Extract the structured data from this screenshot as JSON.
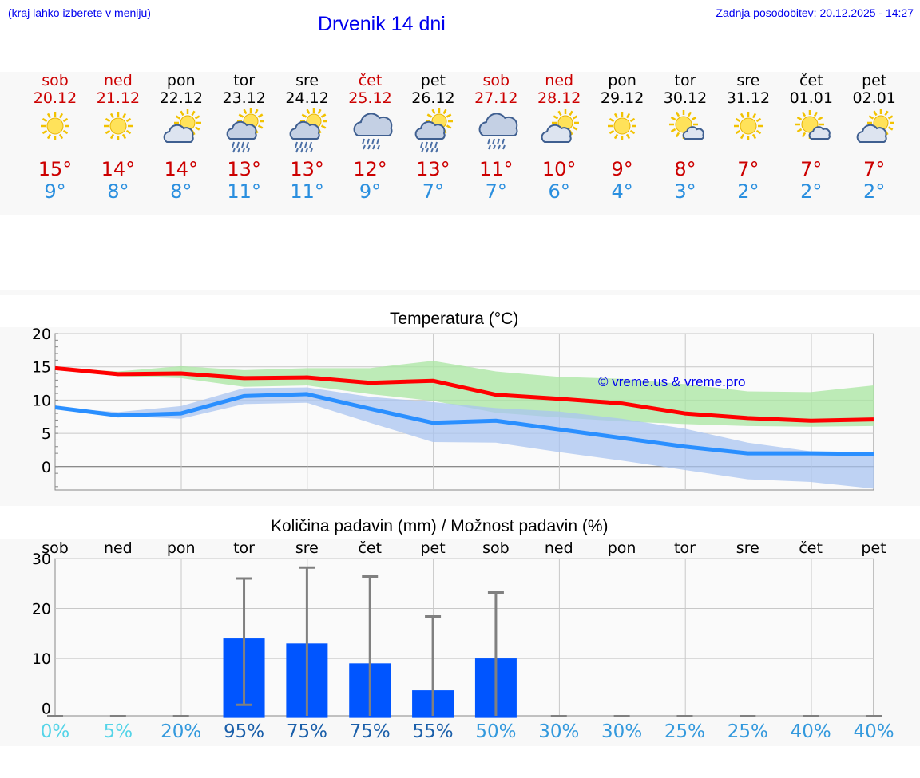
{
  "header": {
    "hint": "(kraj lahko izberete v meniju)",
    "title": "Drvenik 14 dni",
    "updated": "Zadnja posodobitev: 20.12.2025 - 14:27"
  },
  "days": [
    {
      "name": "sob",
      "date": "20.12",
      "weekend": true,
      "tmax": "15°",
      "tmin": "9°",
      "icon": "sun-icon"
    },
    {
      "name": "ned",
      "date": "21.12",
      "weekend": true,
      "tmax": "14°",
      "tmin": "8°",
      "icon": "sun-icon"
    },
    {
      "name": "pon",
      "date": "22.12",
      "weekend": false,
      "tmax": "14°",
      "tmin": "8°",
      "icon": "sun-cloud-icon"
    },
    {
      "name": "tor",
      "date": "23.12",
      "weekend": false,
      "tmax": "13°",
      "tmin": "11°",
      "icon": "sun-cloud-rain-icon"
    },
    {
      "name": "sre",
      "date": "24.12",
      "weekend": false,
      "tmax": "13°",
      "tmin": "11°",
      "icon": "sun-cloud-rain-icon"
    },
    {
      "name": "čet",
      "date": "25.12",
      "weekend": true,
      "tmax": "12°",
      "tmin": "9°",
      "icon": "cloud-rain-icon"
    },
    {
      "name": "pet",
      "date": "26.12",
      "weekend": false,
      "tmax": "13°",
      "tmin": "7°",
      "icon": "sun-cloud-rain-icon"
    },
    {
      "name": "sob",
      "date": "27.12",
      "weekend": true,
      "tmax": "11°",
      "tmin": "7°",
      "icon": "cloud-rain-icon"
    },
    {
      "name": "ned",
      "date": "28.12",
      "weekend": true,
      "tmax": "10°",
      "tmin": "6°",
      "icon": "sun-cloud-icon"
    },
    {
      "name": "pon",
      "date": "29.12",
      "weekend": false,
      "tmax": "9°",
      "tmin": "4°",
      "icon": "sun-icon"
    },
    {
      "name": "tor",
      "date": "30.12",
      "weekend": false,
      "tmax": "8°",
      "tmin": "3°",
      "icon": "sun-small-cloud-icon"
    },
    {
      "name": "sre",
      "date": "31.12",
      "weekend": false,
      "tmax": "7°",
      "tmin": "2°",
      "icon": "sun-icon"
    },
    {
      "name": "čet",
      "date": "01.01",
      "weekend": false,
      "tmax": "7°",
      "tmin": "2°",
      "icon": "sun-small-cloud-icon"
    },
    {
      "name": "pet",
      "date": "02.01",
      "weekend": false,
      "tmax": "7°",
      "tmin": "2°",
      "icon": "sun-cloud-icon"
    }
  ],
  "colors": {
    "weekend": "#cc0000",
    "weekday": "#000000",
    "tmax_line": "#ff0000",
    "tmin_line": "#2a8fff",
    "tmax_band": "#a8e6a0",
    "tmin_band": "#aac4f0",
    "overlap_band": "#7cc8a8",
    "precip_bar": "#0055ff",
    "error_bar": "#808080"
  },
  "chart_data": [
    {
      "type": "line",
      "title": "Temperatura (°C)",
      "xlabel": "",
      "ylabel": "",
      "ylim": [
        -3.5,
        20
      ],
      "yticks": [
        "20",
        "15",
        "10",
        "5",
        "0"
      ],
      "grid": true,
      "watermark": "© vreme.us & vreme.pro",
      "x": [
        "20.12",
        "21.12",
        "22.12",
        "23.12",
        "24.12",
        "25.12",
        "26.12",
        "27.12",
        "28.12",
        "29.12",
        "30.12",
        "31.12",
        "01.01",
        "02.01"
      ],
      "series": [
        {
          "name": "max",
          "values": [
            14.8,
            13.9,
            14.0,
            13.3,
            13.4,
            12.6,
            12.9,
            10.8,
            10.2,
            9.5,
            8.0,
            7.3,
            6.9,
            7.1
          ]
        },
        {
          "name": "min",
          "values": [
            8.9,
            7.7,
            8.0,
            10.6,
            10.9,
            8.7,
            6.6,
            6.9,
            5.6,
            4.3,
            3.0,
            2.0,
            2.0,
            1.9
          ]
        }
      ],
      "bands": [
        {
          "name": "max-range",
          "lower": [
            14.8,
            13.6,
            13.3,
            12.0,
            12.2,
            10.9,
            9.9,
            8.1,
            7.4,
            6.8,
            6.4,
            6.1,
            6.0,
            6.1
          ],
          "upper": [
            14.9,
            14.3,
            15.1,
            14.5,
            14.8,
            14.8,
            15.9,
            14.3,
            13.5,
            13.2,
            12.4,
            11.3,
            11.2,
            12.2
          ]
        },
        {
          "name": "min-range",
          "lower": [
            8.9,
            7.6,
            7.2,
            9.4,
            9.6,
            6.6,
            3.7,
            3.6,
            2.2,
            0.9,
            -0.5,
            -1.9,
            -2.3,
            -3.3
          ],
          "upper": [
            8.9,
            8.2,
            9.1,
            11.8,
            11.9,
            10.5,
            9.7,
            8.8,
            8.3,
            7.2,
            5.7,
            3.6,
            2.3,
            2.1
          ]
        }
      ]
    },
    {
      "type": "bar",
      "title": "Količina padavin (mm) / Možnost padavin (%)",
      "xlabel": "",
      "ylabel": "",
      "ylim": [
        -1.5,
        30
      ],
      "yticks": [
        "30",
        "20",
        "10",
        "0"
      ],
      "grid": true,
      "categories": [
        "sob",
        "ned",
        "pon",
        "tor",
        "sre",
        "čet",
        "pet",
        "sob",
        "ned",
        "pon",
        "tor",
        "sre",
        "čet",
        "pet"
      ],
      "values": [
        0,
        0,
        0,
        14,
        13,
        9,
        3.6,
        10,
        0,
        0,
        0,
        0,
        0,
        0
      ],
      "error_low": [
        0,
        0,
        0,
        0.7,
        0,
        0,
        0,
        0,
        0,
        0,
        0,
        0,
        0,
        0
      ],
      "error_high": [
        0,
        0,
        0,
        26,
        28.2,
        26.4,
        18.4,
        23.2,
        0,
        0,
        0,
        0,
        0,
        0
      ],
      "probability": [
        "0%",
        "5%",
        "20%",
        "95%",
        "75%",
        "75%",
        "55%",
        "50%",
        "30%",
        "30%",
        "25%",
        "25%",
        "40%",
        "40%"
      ],
      "probability_colors": [
        "#55d4e8",
        "#55d4e8",
        "#3399dd",
        "#1a5faa",
        "#1a5faa",
        "#1a5faa",
        "#1a5faa",
        "#3399dd",
        "#3399dd",
        "#3399dd",
        "#3399dd",
        "#3399dd",
        "#3399dd",
        "#3399dd"
      ]
    }
  ]
}
